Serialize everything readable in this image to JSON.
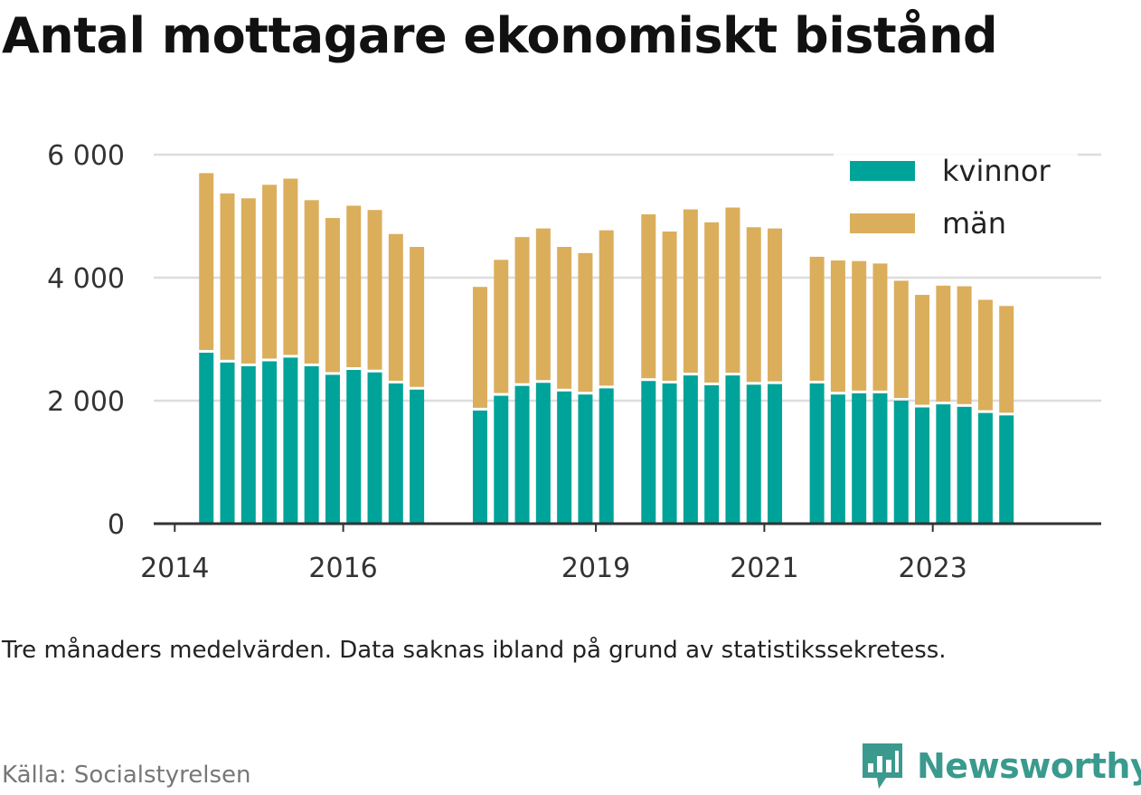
{
  "title": "Antal mottagare ekonomiskt bistånd",
  "note": "Tre månaders medelvärden. Data saknas ibland på grund av statistikssekretess.",
  "source": "Källa: Socialstyrelsen",
  "brand": {
    "name": "Newsworthy",
    "icon": "newsworthy-logo-icon"
  },
  "colors": {
    "kvinnor": "#00a399",
    "man": "#dbae5c",
    "grid": "#dddddd",
    "axis": "#333333"
  },
  "chart_data": {
    "type": "bar",
    "stacked": true,
    "ylim": [
      0,
      6000
    ],
    "yticks": [
      0,
      2000,
      4000,
      6000
    ],
    "ytick_labels": [
      "0",
      "2 000",
      "4 000",
      "6 000"
    ],
    "x_range": [
      2013.75,
      2025.0
    ],
    "xticks": [
      2014,
      2016,
      2019,
      2021,
      2023
    ],
    "xtick_labels": [
      "2014",
      "2016",
      "2019",
      "2021",
      "2023"
    ],
    "grid": true,
    "legend_position": "top-right",
    "series": [
      {
        "name": "kvinnor",
        "color": "#00a399",
        "values": [
          2780,
          2620,
          2560,
          2640,
          2700,
          2560,
          2420,
          2500,
          2460,
          2280,
          2180,
          1840,
          2080,
          2240,
          2290,
          2150,
          2100,
          2200,
          2320,
          2280,
          2410,
          2250,
          2410,
          2260,
          2270,
          2280,
          2100,
          2120,
          2120,
          2000,
          1890,
          1940,
          1900,
          1800,
          1760
        ]
      },
      {
        "name": "män",
        "color": "#dbae5c",
        "values": [
          2920,
          2750,
          2730,
          2870,
          2910,
          2700,
          2550,
          2670,
          2640,
          2430,
          2320,
          2010,
          2210,
          2420,
          2510,
          2350,
          2300,
          2570,
          2710,
          2470,
          2700,
          2650,
          2730,
          2560,
          2530,
          2060,
          2180,
          2150,
          2110,
          1950,
          1830,
          1930,
          1960,
          1840,
          1780
        ]
      }
    ],
    "x": [
      2014.375,
      2014.625,
      2014.875,
      2015.125,
      2015.375,
      2015.625,
      2015.875,
      2016.125,
      2016.375,
      2016.625,
      2016.875,
      2017.625,
      2017.875,
      2018.125,
      2018.375,
      2018.625,
      2018.875,
      2019.125,
      2019.625,
      2019.875,
      2020.125,
      2020.375,
      2020.625,
      2020.875,
      2021.125,
      2021.625,
      2021.875,
      2022.125,
      2022.375,
      2022.625,
      2022.875,
      2023.125,
      2023.375,
      2023.625,
      2023.875
    ]
  }
}
